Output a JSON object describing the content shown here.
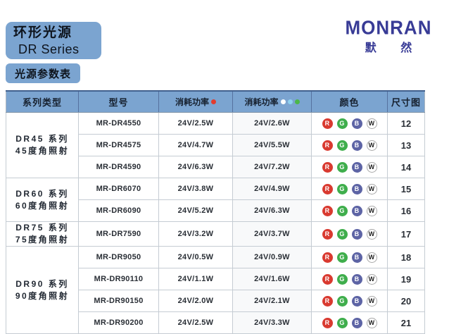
{
  "page": {
    "title_line1": "环形光源",
    "title_line2": "DR Series",
    "subtitle": "光源参数表"
  },
  "logo": {
    "brand": "MONRAN",
    "brand_cn": "默 然"
  },
  "colors": {
    "header_bg": "#7ba4d0",
    "header_top_line": "#41608e",
    "grid_line": "#c5ccd3",
    "logo_blue": "#383b96"
  },
  "table": {
    "headers": {
      "series": "系列类型",
      "model": "型号",
      "power_r": "消耗功率",
      "power_wbg": "消耗功率",
      "color": "颜色",
      "size": "尺寸图"
    },
    "header_dots": {
      "power_r": [
        "#e23b2e"
      ],
      "power_wbg": [
        "#ffffff",
        "#8fd1ef",
        "#4cb749"
      ]
    },
    "color_badges": [
      {
        "letter": "R",
        "bg": "#d93a30",
        "fg": "#ffffff"
      },
      {
        "letter": "G",
        "bg": "#3fae4c",
        "fg": "#ffffff"
      },
      {
        "letter": "B",
        "bg": "#5d64a5",
        "fg": "#ffffff"
      },
      {
        "letter": "W",
        "bg": "#ffffff",
        "fg": "#222222",
        "border": "#a8a8a8"
      }
    ],
    "groups": [
      {
        "series_line1": "DR45 系列",
        "series_line2": "45度角照射",
        "rows": [
          {
            "model": "MR-DR4550",
            "power_r": "24V/2.5W",
            "power_wbg": "24V/2.6W",
            "size": "12"
          },
          {
            "model": "MR-DR4575",
            "power_r": "24V/4.7W",
            "power_wbg": "24V/5.5W",
            "size": "13"
          },
          {
            "model": "MR-DR4590",
            "power_r": "24V/6.3W",
            "power_wbg": "24V/7.2W",
            "size": "14"
          }
        ]
      },
      {
        "series_line1": "DR60 系列",
        "series_line2": "60度角照射",
        "rows": [
          {
            "model": "MR-DR6070",
            "power_r": "24V/3.8W",
            "power_wbg": "24V/4.9W",
            "size": "15"
          },
          {
            "model": "MR-DR6090",
            "power_r": "24V/5.2W",
            "power_wbg": "24V/6.3W",
            "size": "16"
          }
        ]
      },
      {
        "series_line1": "DR75 系列",
        "series_line2": "75度角照射",
        "rows": [
          {
            "model": "MR-DR7590",
            "power_r": "24V/3.2W",
            "power_wbg": "24V/3.7W",
            "size": "17"
          }
        ]
      },
      {
        "series_line1": "DR90 系列",
        "series_line2": "90度角照射",
        "rows": [
          {
            "model": "MR-DR9050",
            "power_r": "24V/0.5W",
            "power_wbg": "24V/0.9W",
            "size": "18"
          },
          {
            "model": "MR-DR90110",
            "power_r": "24V/1.1W",
            "power_wbg": "24V/1.6W",
            "size": "19"
          },
          {
            "model": "MR-DR90150",
            "power_r": "24V/2.0W",
            "power_wbg": "24V/2.1W",
            "size": "20"
          },
          {
            "model": "MR-DR90200",
            "power_r": "24V/2.5W",
            "power_wbg": "24V/3.3W",
            "size": "21"
          }
        ]
      }
    ]
  }
}
